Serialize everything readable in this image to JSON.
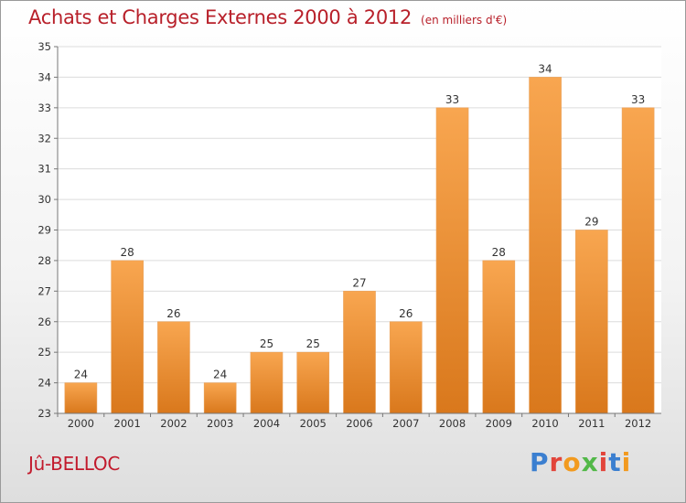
{
  "header": {
    "title": "Achats et Charges Externes 2000 à 2012",
    "unit": "(en milliers d'€)"
  },
  "footer": {
    "commune": "Jû-BELLOC",
    "logo_text": "Proxiti",
    "logo_colors": [
      "#3b7fd0",
      "#e2453b",
      "#f29a1f",
      "#52b848",
      "#e2453b",
      "#3b7fd0",
      "#f29a1f"
    ]
  },
  "chart_data": {
    "type": "bar",
    "title": "Achats et Charges Externes 2000 à 2012",
    "subtitle": "(en milliers d'€)",
    "categories": [
      "2000",
      "2001",
      "2002",
      "2003",
      "2004",
      "2005",
      "2006",
      "2007",
      "2008",
      "2009",
      "2010",
      "2011",
      "2012"
    ],
    "values": [
      24,
      28,
      26,
      24,
      25,
      25,
      27,
      26,
      33,
      28,
      34,
      29,
      33
    ],
    "ylim": [
      23,
      35
    ],
    "yticks": [
      23,
      24,
      25,
      26,
      27,
      28,
      29,
      30,
      31,
      32,
      33,
      34,
      35
    ],
    "grid": true,
    "bar_color_top": "#f8a650",
    "bar_color_bottom": "#d9781c",
    "xlabel": "",
    "ylabel": ""
  }
}
